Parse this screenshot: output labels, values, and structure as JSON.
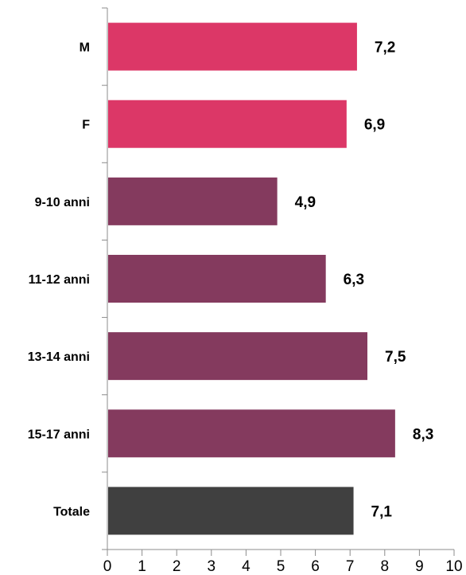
{
  "chart_data": {
    "type": "bar",
    "orientation": "horizontal",
    "title": "",
    "xlabel": "",
    "ylabel": "",
    "categories": [
      "M",
      "F",
      "9-10 anni",
      "11-12 anni",
      "13-14 anni",
      "15-17 anni",
      "Totale"
    ],
    "values": [
      7.2,
      6.9,
      4.9,
      6.3,
      7.5,
      8.3,
      7.1
    ],
    "value_labels": [
      "7,2",
      "6,9",
      "4,9",
      "6,3",
      "7,5",
      "8,3",
      "7,1"
    ],
    "bar_colors": [
      "#dc3767",
      "#dc3767",
      "#843a5e",
      "#843a5e",
      "#843a5e",
      "#843a5e",
      "#404040"
    ],
    "xlim": [
      0,
      10
    ],
    "x_ticks": [
      "0",
      "1",
      "2",
      "3",
      "4",
      "5",
      "6",
      "7",
      "8",
      "9",
      "10"
    ],
    "grid": false,
    "legend": "none"
  }
}
